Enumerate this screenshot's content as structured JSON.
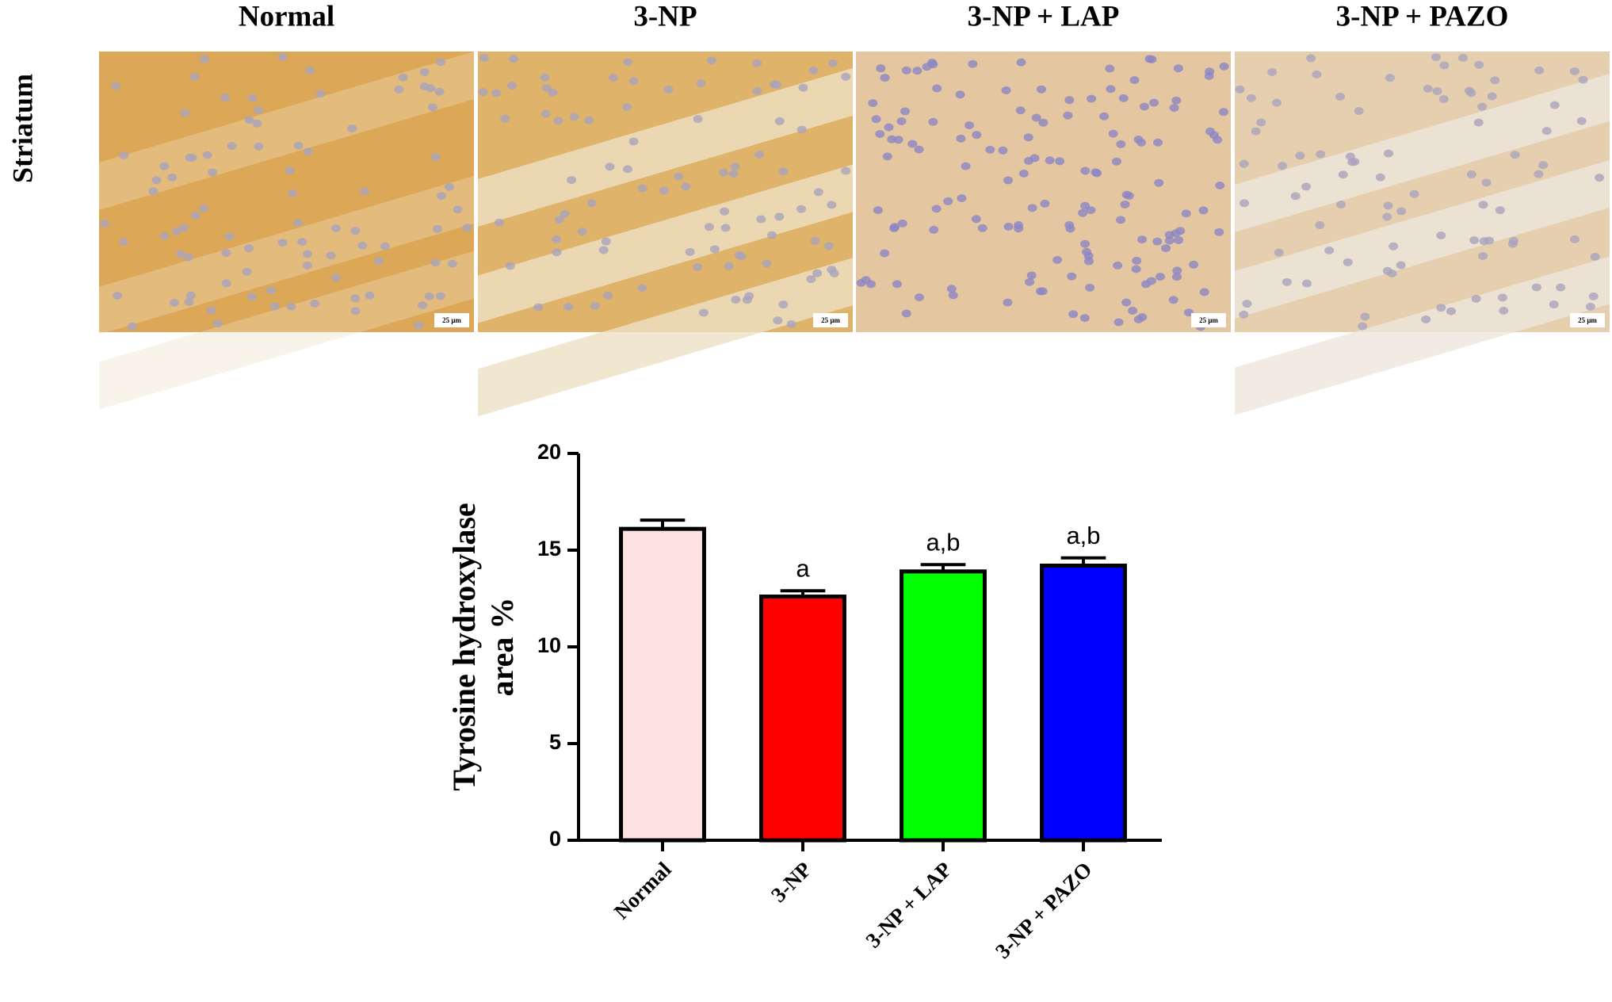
{
  "panels": {
    "row_label": "Striatum",
    "titles": [
      "Normal",
      "3-NP",
      "3-NP + LAP",
      "3-NP + PAZO"
    ],
    "scale_bar": "25 μm"
  },
  "chart_data": {
    "type": "bar",
    "ylabel": [
      "Tyrosine hydroxylase",
      "area %"
    ],
    "categories": [
      "Normal",
      "3-NP",
      "3-NP + LAP",
      "3-NP + PAZO"
    ],
    "series": [
      {
        "values": [
          16.1,
          12.6,
          13.9,
          14.2
        ],
        "errors": [
          0.45,
          0.3,
          0.35,
          0.4
        ],
        "colors": [
          "#fde0e0",
          "#ff0000",
          "#00ff00",
          "#0000ff"
        ]
      }
    ],
    "annotations": [
      null,
      "a",
      "a,b",
      "a,b"
    ],
    "ylim": [
      0,
      20
    ],
    "yticks": [
      0,
      5,
      10,
      15,
      20
    ]
  }
}
